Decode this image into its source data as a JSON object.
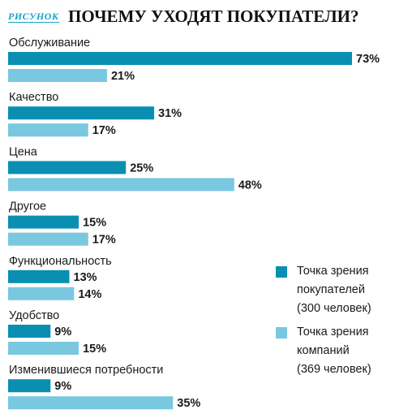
{
  "header": {
    "tag": "РИСУНОК",
    "title": "ПОЧЕМУ УХОДЯТ ПОКУПАТЕЛИ?"
  },
  "colors": {
    "customers": "#0a8fb3",
    "companies": "#7ac7e0"
  },
  "legend": [
    {
      "key": "customers",
      "lines": [
        "Точка зрения",
        "покупателей",
        "(300 человек)"
      ]
    },
    {
      "key": "companies",
      "lines": [
        "Точка зрения",
        "компаний",
        "(369 человек)"
      ]
    }
  ],
  "chart_data": {
    "type": "bar",
    "orientation": "horizontal",
    "title": "ПОЧЕМУ УХОДЯТ ПОКУПАТЕЛИ?",
    "xlim": [
      0,
      73
    ],
    "unit": "%",
    "categories": [
      "Обслуживание",
      "Качество",
      "Цена",
      "Другое",
      "Функциональность",
      "Удобство",
      "Изменившиеся потребности"
    ],
    "series": [
      {
        "name": "Точка зрения покупателей (300 человек)",
        "key": "customers",
        "values": [
          73,
          31,
          25,
          15,
          13,
          9,
          9
        ]
      },
      {
        "name": "Точка зрения компаний (369 человек)",
        "key": "companies",
        "values": [
          21,
          17,
          48,
          17,
          14,
          15,
          35
        ]
      }
    ]
  }
}
